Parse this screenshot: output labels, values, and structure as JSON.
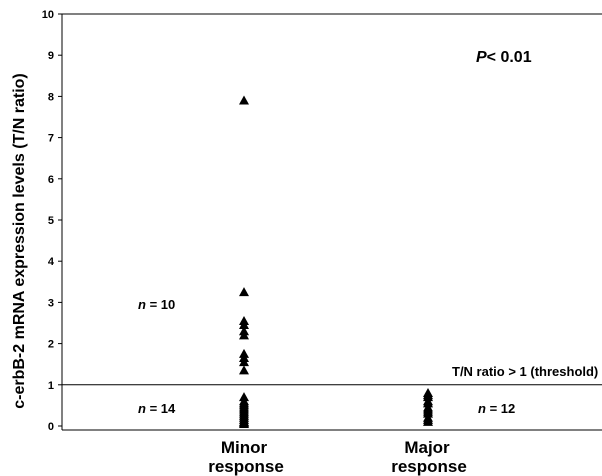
{
  "chart_data": {
    "type": "scatter",
    "title": "",
    "ylabel": "c-erbB-2 mRNA expression levels (T/N ratio)",
    "xlabel": "",
    "ylim": [
      0,
      10
    ],
    "yticks": [
      "0",
      "1",
      "2",
      "3",
      "4",
      "5",
      "6",
      "7",
      "8",
      "9",
      "10"
    ],
    "categories": [
      {
        "label_line1": "Minor",
        "label_line2": "response"
      },
      {
        "label_line1": "Major",
        "label_line2": "response"
      }
    ],
    "series": [
      {
        "category_index": 0,
        "marker": "triangle",
        "values": [
          7.9,
          3.25,
          2.55,
          2.45,
          2.3,
          2.2,
          1.75,
          1.65,
          1.55,
          1.35,
          0.7,
          0.6,
          0.55,
          0.5,
          0.45,
          0.4,
          0.35,
          0.3,
          0.25,
          0.2,
          0.15,
          0.1,
          0.08,
          0.05
        ]
      },
      {
        "category_index": 1,
        "marker": "triangle",
        "values": [
          0.8,
          0.75,
          0.7,
          0.6,
          0.55,
          0.45,
          0.4,
          0.35,
          0.3,
          0.2,
          0.15,
          0.1
        ]
      }
    ],
    "threshold": {
      "value": 1,
      "label": "T/N ratio > 1 (threshold)"
    },
    "annotations": {
      "p_value_prefix": "P",
      "p_value_suffix": "< 0.01",
      "n_minor_above_prefix": "n",
      "n_minor_above_suffix": " = 10",
      "n_minor_below_prefix": "n",
      "n_minor_below_suffix": " = 14",
      "n_major_below_prefix": "n",
      "n_major_below_suffix": " = 12"
    }
  }
}
